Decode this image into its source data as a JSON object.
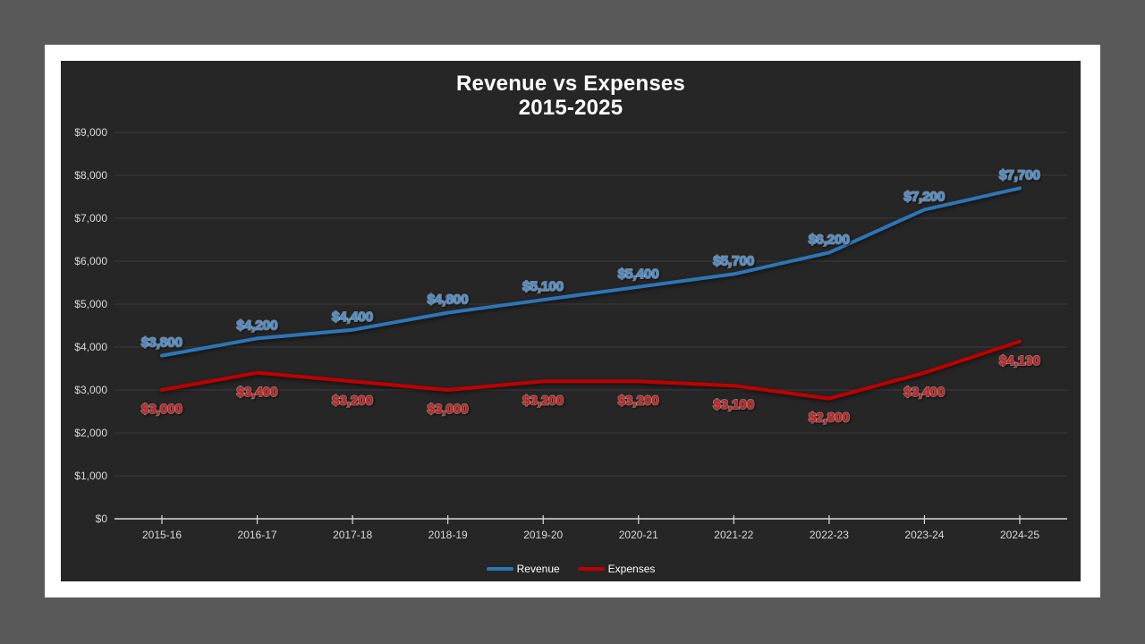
{
  "slide": {
    "page_background": "#595959",
    "frame_color": "#ffffff"
  },
  "chart_data": {
    "type": "line",
    "title": "Revenue vs Expenses",
    "subtitle": "2015-2025",
    "background": "#262626",
    "grid": true,
    "grid_color": "#3c3c3c",
    "axis_line_color": "#d9d9d9",
    "axis_text_color": "#d9d9d9",
    "title_color": "#ffffff",
    "legend_position": "bottom",
    "categories": [
      "2015-16",
      "2016-17",
      "2017-18",
      "2018-19",
      "2019-20",
      "2020-21",
      "2021-22",
      "2022-23",
      "2023-24",
      "2024-25"
    ],
    "series": [
      {
        "name": "Revenue",
        "color": "#2E75B6",
        "label_color": "#4E94D8",
        "label_halo": "#CFE4F7",
        "label_side": "above",
        "values": [
          3800,
          4200,
          4400,
          4800,
          5100,
          5400,
          5700,
          6200,
          7200,
          7700
        ],
        "data_labels": [
          "$3,800",
          "$4,200",
          "$4,400",
          "$4,800",
          "$5,100",
          "$5,400",
          "$5,700",
          "$6,200",
          "$7,200",
          "$7,700"
        ]
      },
      {
        "name": "Expenses",
        "color": "#C00000",
        "label_color": "#CF1D1D",
        "label_halo": "#F6C6C6",
        "label_side": "below",
        "values": [
          3000,
          3400,
          3200,
          3000,
          3200,
          3200,
          3100,
          2800,
          3400,
          4130
        ],
        "data_labels": [
          "$3,000",
          "$3,400",
          "$3,200",
          "$3,000",
          "$3,200",
          "$3,200",
          "$3,100",
          "$2,800",
          "$3,400",
          "$4,130"
        ]
      }
    ],
    "y_axis": {
      "min": 0,
      "max": 9000,
      "step": 1000,
      "tick_labels": [
        "$0",
        "$1,000",
        "$2,000",
        "$3,000",
        "$4,000",
        "$5,000",
        "$6,000",
        "$7,000",
        "$8,000",
        "$9,000"
      ]
    }
  }
}
